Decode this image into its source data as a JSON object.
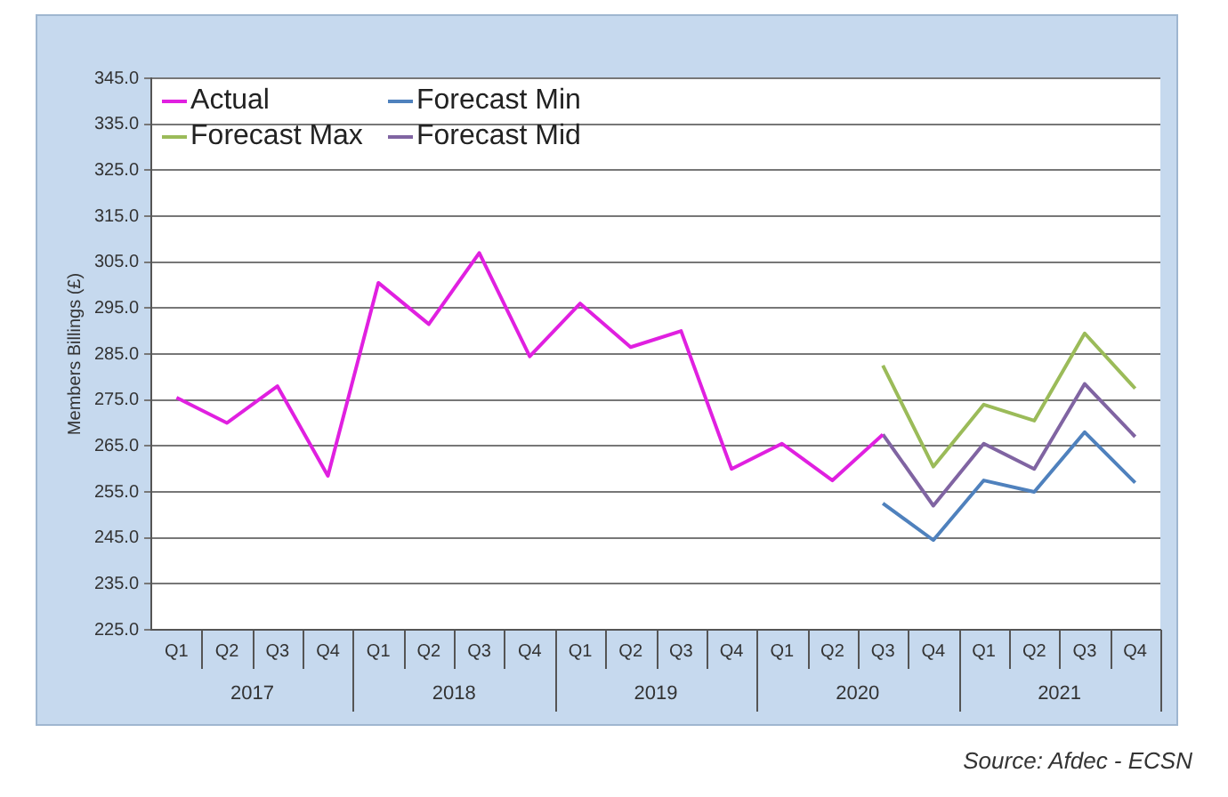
{
  "chart_data": {
    "type": "line",
    "ylabel": "Members Billings (£)",
    "categories": [
      "Q1",
      "Q2",
      "Q3",
      "Q4",
      "Q1",
      "Q2",
      "Q3",
      "Q4",
      "Q1",
      "Q2",
      "Q3",
      "Q4",
      "Q1",
      "Q2",
      "Q3",
      "Q4",
      "Q1",
      "Q2",
      "Q3",
      "Q4"
    ],
    "series": [
      {
        "name": "Actual",
        "color": "#e020e0",
        "values": [
          275.5,
          270,
          278,
          258.5,
          300.5,
          291.5,
          307,
          284.5,
          296,
          286.5,
          290,
          260,
          265.5,
          257.5,
          267.5,
          null,
          null,
          null,
          null,
          null
        ]
      },
      {
        "name": "Forecast Min",
        "color": "#4f81bd",
        "values": [
          null,
          null,
          null,
          null,
          null,
          null,
          null,
          null,
          null,
          null,
          null,
          null,
          null,
          null,
          252.5,
          244.5,
          257.5,
          255,
          268,
          257
        ]
      },
      {
        "name": "Forecast Max",
        "color": "#9bbb59",
        "values": [
          null,
          null,
          null,
          null,
          null,
          null,
          null,
          null,
          null,
          null,
          null,
          null,
          null,
          null,
          282.5,
          260.5,
          274,
          270.5,
          289.5,
          277.5
        ]
      },
      {
        "name": "Forecast Mid",
        "color": "#8064a2",
        "values": [
          null,
          null,
          null,
          null,
          null,
          null,
          null,
          null,
          null,
          null,
          null,
          null,
          null,
          null,
          267.5,
          252,
          265.5,
          260,
          278.5,
          267
        ]
      }
    ],
    "ylim": [
      225,
      345
    ],
    "yticks": [
      {
        "value": 225,
        "label": "225.0"
      },
      {
        "value": 235,
        "label": "235.0"
      },
      {
        "value": 245,
        "label": "245.0"
      },
      {
        "value": 255,
        "label": "255.0"
      },
      {
        "value": 265,
        "label": "265.0"
      },
      {
        "value": 275,
        "label": "275.0"
      },
      {
        "value": 285,
        "label": "285.0"
      },
      {
        "value": 295,
        "label": "295.0"
      },
      {
        "value": 305,
        "label": "305.0"
      },
      {
        "value": 315,
        "label": "315.0"
      },
      {
        "value": 325,
        "label": "325.0"
      },
      {
        "value": 335,
        "label": "335.0"
      },
      {
        "value": 345,
        "label": "345.0"
      }
    ],
    "grid": "y",
    "legend": "top left",
    "marker": "none",
    "line_style": "solid",
    "annotations": [
      "2017",
      "2018",
      "2019",
      "2020",
      "2021",
      "Source: Afdec - ECSN"
    ]
  }
}
